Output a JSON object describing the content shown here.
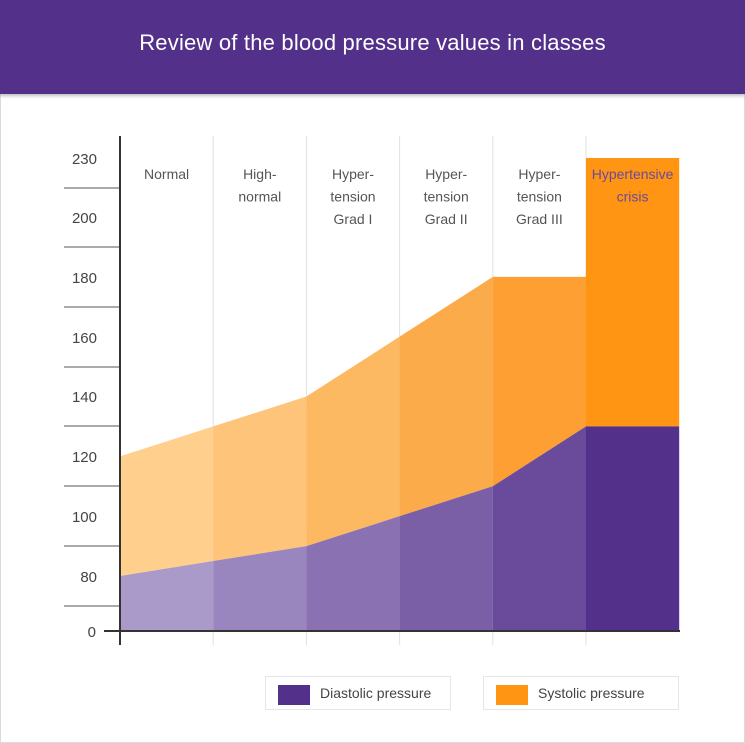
{
  "title": "Review of the blood pressure values in classes",
  "colors": {
    "header": "#533089",
    "diastolic": "#533089",
    "systolic": "#FF9512"
  },
  "chart_data": {
    "type": "area",
    "title": "Review of the blood pressure values in classes",
    "xlabel": "",
    "ylabel": "",
    "y_ticks": [
      0,
      80,
      100,
      120,
      140,
      160,
      180,
      200,
      230
    ],
    "classes": [
      {
        "label_lines": [
          "Normal"
        ]
      },
      {
        "label_lines": [
          "High-",
          "normal"
        ]
      },
      {
        "label_lines": [
          "Hyper-",
          "tension",
          "Grad I"
        ]
      },
      {
        "label_lines": [
          "Hyper-",
          "tension",
          "Grad II"
        ]
      },
      {
        "label_lines": [
          "Hyper-",
          "tension",
          "Grad III"
        ]
      },
      {
        "label_lines": [
          "Hypertensive",
          "crisis"
        ]
      }
    ],
    "series": [
      {
        "name": "Diastolic pressure",
        "values": [
          80,
          85,
          90,
          100,
          110,
          130,
          130
        ]
      },
      {
        "name": "Systolic pressure",
        "values": [
          120,
          130,
          140,
          160,
          180,
          180,
          230
        ]
      }
    ],
    "crisis_segment": {
      "diastolic": 130,
      "systolic": 230
    },
    "legend": [
      {
        "label": "Diastolic pressure",
        "color": "#533089"
      },
      {
        "label": "Systolic pressure",
        "color": "#FF9512"
      }
    ]
  }
}
